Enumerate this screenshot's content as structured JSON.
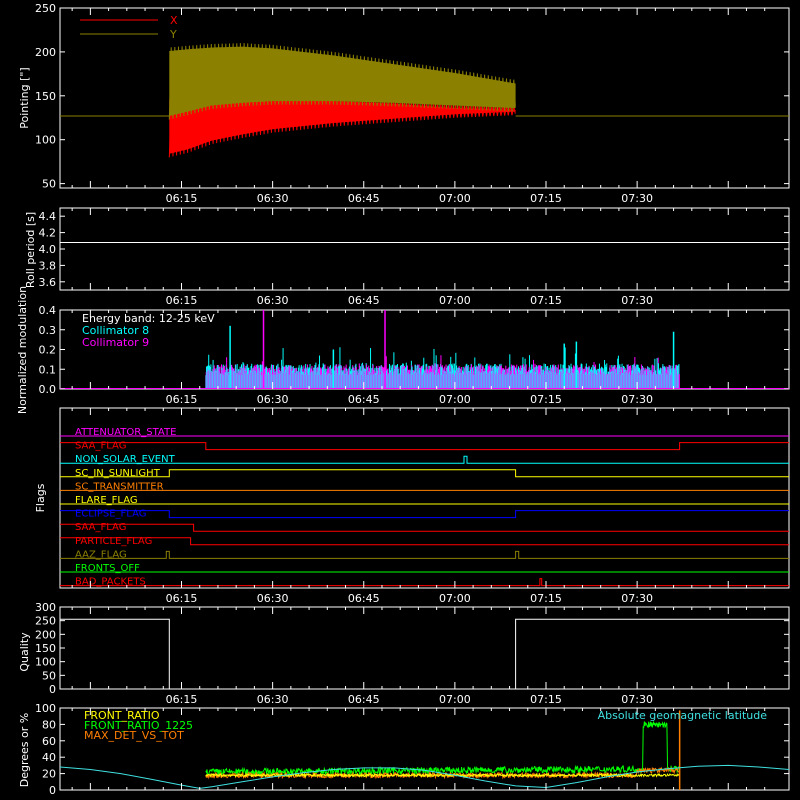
{
  "time_ticks": [
    "06:15",
    "06:30",
    "06:45",
    "07:00",
    "07:15",
    "07:30"
  ],
  "time_tick_minutes": [
    375,
    390,
    405,
    420,
    435,
    450
  ],
  "time_range": [
    355,
    475
  ],
  "colors": {
    "red": "#ff0000",
    "olive": "#8b8000",
    "white": "#ffffff",
    "cyan": "#00ffff",
    "magenta": "#ff00ff",
    "orange": "#ff7f00",
    "yellow": "#ffff00",
    "blue": "#0000ff",
    "green": "#00ff00",
    "lightcyan": "#40e0e0"
  },
  "chart_data": [
    {
      "id": "pointing",
      "type": "area",
      "ylabel": "Pointing [\"]",
      "ylim": [
        45,
        250
      ],
      "yticks": [
        50,
        100,
        150,
        200,
        250
      ],
      "legend": [
        {
          "label": "X",
          "color": "#ff0000"
        },
        {
          "label": "Y",
          "color": "#8b8000"
        }
      ],
      "baseline": 127,
      "active_range": [
        373,
        430
      ],
      "series": [
        {
          "name": "X",
          "x": [
            373,
            376,
            380,
            385,
            390,
            400,
            410,
            420,
            430
          ],
          "min": [
            80,
            85,
            95,
            102,
            108,
            115,
            120,
            125,
            128
          ],
          "max": [
            150,
            153,
            157,
            155,
            152,
            148,
            145,
            140,
            138
          ]
        },
        {
          "name": "Y",
          "x": [
            373,
            376,
            380,
            385,
            390,
            400,
            410,
            420,
            430
          ],
          "min": [
            123,
            128,
            135,
            138,
            140,
            140,
            138,
            135,
            132
          ],
          "max": [
            205,
            207,
            209,
            210,
            208,
            200,
            190,
            180,
            168
          ]
        }
      ]
    },
    {
      "id": "roll_period",
      "type": "line",
      "ylabel": "Roll period [s]",
      "ylim": [
        3.5,
        4.5
      ],
      "yticks": [
        3.6,
        3.8,
        4.0,
        4.2,
        4.4
      ],
      "value": 4.08
    },
    {
      "id": "modulation",
      "type": "bar",
      "ylabel": "Normalized modulation",
      "ylim": [
        0,
        0.4
      ],
      "yticks": [
        0.0,
        0.1,
        0.2,
        0.3,
        0.4
      ],
      "annotations": [
        "Energy band: 12-25 keV",
        "Collimator 8",
        "Collimator 9"
      ],
      "series": [
        {
          "name": "Collimator 8",
          "color": "#00ffff",
          "range": [
            379,
            457
          ],
          "typical": 0.1
        },
        {
          "name": "Collimator 9",
          "color": "#ff00ff",
          "range": [
            379,
            457
          ],
          "typical": 0.1
        }
      ],
      "spikes": [
        {
          "x": 388.5,
          "y": 0.4,
          "series": "Collimator 9"
        },
        {
          "x": 408.5,
          "y": 0.4,
          "series": "Collimator 9"
        },
        {
          "x": 383,
          "y": 0.32,
          "series": "Collimator 8"
        },
        {
          "x": 440,
          "y": 0.24,
          "series": "Collimator 8"
        },
        {
          "x": 456,
          "y": 0.29,
          "series": "Collimator 8"
        },
        {
          "x": 438,
          "y": 0.23,
          "series": "Collimator 8"
        },
        {
          "x": 400,
          "y": 0.2,
          "series": "Collimator 8"
        }
      ]
    },
    {
      "id": "flags",
      "type": "table",
      "ylabel": "Flags",
      "flags": [
        {
          "name": "ATTENUATOR_STATE",
          "color": "#ff00ff",
          "steps": [
            [
              355,
              0
            ]
          ]
        },
        {
          "name": "SAA_FLAG",
          "color": "#ff0000",
          "steps": [
            [
              355,
              1
            ],
            [
              379,
              0
            ],
            [
              457,
              1
            ]
          ]
        },
        {
          "name": "NON_SOLAR_EVENT",
          "color": "#00ffff",
          "steps": [
            [
              355,
              0
            ],
            [
              421.5,
              1
            ],
            [
              422,
              0
            ]
          ]
        },
        {
          "name": "SC_IN_SUNLIGHT",
          "color": "#ffff00",
          "steps": [
            [
              355,
              0
            ],
            [
              373,
              1
            ],
            [
              430,
              0
            ]
          ]
        },
        {
          "name": "SC_TRANSMITTER",
          "color": "#ff7f00",
          "steps": [
            [
              355,
              0
            ]
          ]
        },
        {
          "name": "FLARE_FLAG",
          "color": "#ffff00",
          "steps": [
            [
              355,
              0
            ]
          ]
        },
        {
          "name": "ECLIPSE_FLAG",
          "color": "#0000ff",
          "steps": [
            [
              355,
              1
            ],
            [
              373,
              0
            ],
            [
              430,
              1
            ]
          ]
        },
        {
          "name": "SAA_FLAG",
          "color": "#ff0000",
          "steps": [
            [
              355,
              1
            ],
            [
              377,
              0
            ]
          ]
        },
        {
          "name": "PARTICLE_FLAG",
          "color": "#ff0000",
          "steps": [
            [
              355,
              1
            ],
            [
              376.5,
              0
            ]
          ]
        },
        {
          "name": "AAZ_FLAG",
          "color": "#8b8000",
          "steps": [
            [
              355,
              0
            ],
            [
              372.5,
              1
            ],
            [
              373,
              0
            ],
            [
              430,
              1
            ],
            [
              430.5,
              0
            ]
          ]
        },
        {
          "name": "FRONTS_OFF",
          "color": "#00ff00",
          "steps": [
            [
              355,
              0
            ]
          ]
        },
        {
          "name": "BAD_PACKETS",
          "color": "#ff0000",
          "steps": [
            [
              355,
              0
            ],
            [
              434,
              1
            ],
            [
              434.3,
              0
            ]
          ]
        }
      ]
    },
    {
      "id": "quality",
      "type": "line",
      "ylabel": "Quality",
      "ylim": [
        0,
        300
      ],
      "yticks": [
        0,
        50,
        100,
        150,
        200,
        250,
        300
      ],
      "steps": [
        [
          355,
          255
        ],
        [
          373,
          0
        ],
        [
          430,
          255
        ]
      ]
    },
    {
      "id": "ratios",
      "type": "line",
      "ylabel": "Degrees or %",
      "ylim": [
        0,
        100
      ],
      "yticks": [
        0,
        20,
        40,
        60,
        80,
        100
      ],
      "legend": [
        {
          "label": "FRONT_RATIO",
          "color": "#ffff00"
        },
        {
          "label": "FRONT_RATIO_1225",
          "color": "#00ff00"
        },
        {
          "label": "MAX_DET_VS_TOT",
          "color": "#ff7f00"
        }
      ],
      "annotation": "Absolute geomagnetic latitude",
      "latitude": {
        "x": [
          355,
          360,
          365,
          370,
          375,
          378,
          380,
          385,
          390,
          395,
          400,
          405,
          410,
          415,
          420,
          425,
          430,
          435,
          440,
          445,
          450,
          455,
          460,
          465,
          470,
          475
        ],
        "y": [
          28,
          25,
          20,
          13,
          6,
          2,
          4,
          10,
          16,
          21,
          25,
          27,
          27,
          24,
          18,
          11,
          5,
          3,
          9,
          16,
          22,
          26,
          29,
          30,
          28,
          25
        ]
      },
      "front_ratio_1225": {
        "range": [
          379,
          457
        ],
        "typical": 22,
        "jump": {
          "x": [
            451,
            455
          ],
          "y": 80
        }
      },
      "max_det_vs_tot": {
        "range": [
          379,
          457
        ],
        "typical": 18,
        "spike": {
          "x": 457,
          "y": 97
        }
      }
    }
  ]
}
